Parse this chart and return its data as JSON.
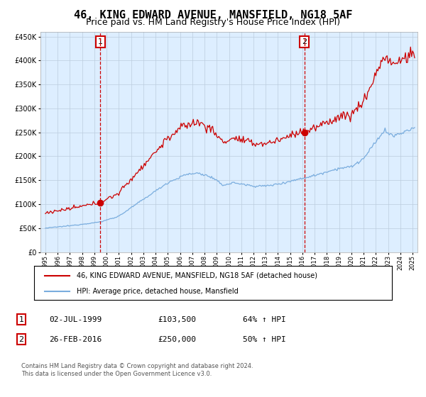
{
  "title": "46, KING EDWARD AVENUE, MANSFIELD, NG18 5AF",
  "subtitle": "Price paid vs. HM Land Registry's House Price Index (HPI)",
  "property_line_label": "46, KING EDWARD AVENUE, MANSFIELD, NG18 5AF (detached house)",
  "hpi_line_label": "HPI: Average price, detached house, Mansfield",
  "sale1_date": "02-JUL-1999",
  "sale1_price": "£103,500",
  "sale1_hpi": "64% ↑ HPI",
  "sale2_date": "26-FEB-2016",
  "sale2_price": "£250,000",
  "sale2_hpi": "50% ↑ HPI",
  "footer": "Contains HM Land Registry data © Crown copyright and database right 2024.\nThis data is licensed under the Open Government Licence v3.0.",
  "sale1_x": 1999.5,
  "sale1_y": 103500,
  "sale2_x": 2016.15,
  "sale2_y": 250000,
  "property_color": "#cc0000",
  "hpi_color": "#7aadde",
  "chart_bg_color": "#ddeeff",
  "background_color": "#ffffff",
  "grid_color": "#bbccdd",
  "ylim": [
    0,
    460000
  ],
  "yticks": [
    0,
    50000,
    100000,
    150000,
    200000,
    250000,
    300000,
    350000,
    400000,
    450000
  ],
  "xlim_start": 1994.6,
  "xlim_end": 2025.4,
  "title_fontsize": 11,
  "subtitle_fontsize": 9,
  "annotation_box_color": "#cc0000",
  "annot_line_color": "#cc0000"
}
